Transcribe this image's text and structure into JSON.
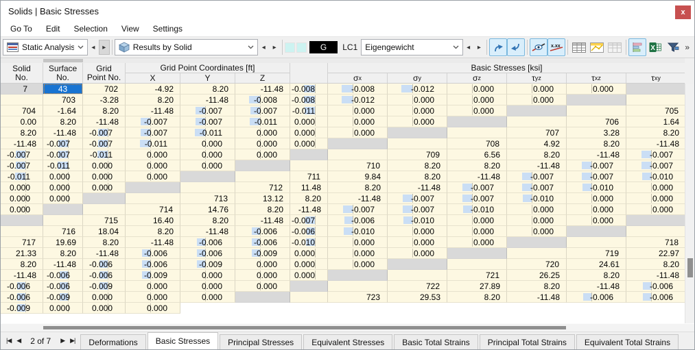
{
  "window": {
    "title": "Solids | Basic Stresses",
    "close_label": "x"
  },
  "menu": {
    "items": [
      "Go To",
      "Edit",
      "Selection",
      "View",
      "Settings"
    ]
  },
  "toolbar": {
    "analysis_combo": "Static Analysis",
    "results_combo": "Results by Solid",
    "loadcase_badge": "G",
    "loadcase_id": "LC1",
    "loadcase_combo": "Eigengewicht",
    "overflow_label": "»",
    "icon_buttons": [
      {
        "name": "jump-previous-icon",
        "highlighted": true
      },
      {
        "name": "jump-next-icon",
        "highlighted": true
      },
      {
        "name": "show-values-icon",
        "highlighted": true
      },
      {
        "name": "decimal-places-icon",
        "highlighted": true
      },
      {
        "name": "table-grid-icon",
        "highlighted": false
      },
      {
        "name": "table-results-icon",
        "highlighted": false
      },
      {
        "name": "table-inactive-icon",
        "highlighted": false
      },
      {
        "name": "result-diagram-icon",
        "highlighted": true
      },
      {
        "name": "export-excel-icon",
        "highlighted": false
      },
      {
        "name": "filter-icon",
        "highlighted": false
      }
    ]
  },
  "colors": {
    "selection": "#1874d2",
    "cell_background": "#fdf8e2",
    "value_bar": "#cadef5"
  },
  "table": {
    "col_headers": {
      "solid": "Solid\nNo.",
      "surface": "Surface\nNo.",
      "grid": "Grid\nPoint No.",
      "coords_group": "Grid Point Coordinates [ft]",
      "coord_axes": [
        "X",
        "Y",
        "Z"
      ],
      "stress_group": "Basic Stresses [ksi]",
      "stress_cols": [
        {
          "sym": "σ",
          "sub": "x"
        },
        {
          "sym": "σ",
          "sub": "y"
        },
        {
          "sym": "σ",
          "sub": "z"
        },
        {
          "sym": "τ",
          "sub": "yz"
        },
        {
          "sym": "τ",
          "sub": "xz"
        },
        {
          "sym": "τ",
          "sub": "xy"
        }
      ]
    },
    "selection": {
      "row": 0,
      "col": 1
    },
    "rows": [
      [
        "7",
        "43",
        "702",
        "-4.92",
        "8.20",
        "-11.48",
        "-0.008",
        "-0.008",
        "-0.012",
        "0.000",
        "0.000",
        "0.000"
      ],
      [
        "",
        "",
        "703",
        "-3.28",
        "8.20",
        "-11.48",
        "-0.008",
        "-0.008",
        "-0.012",
        "0.000",
        "0.000",
        "0.000"
      ],
      [
        "",
        "",
        "704",
        "-1.64",
        "8.20",
        "-11.48",
        "-0.007",
        "-0.007",
        "-0.011",
        "0.000",
        "0.000",
        "0.000"
      ],
      [
        "",
        "",
        "705",
        "0.00",
        "8.20",
        "-11.48",
        "-0.007",
        "-0.007",
        "-0.011",
        "0.000",
        "0.000",
        "0.000"
      ],
      [
        "",
        "",
        "706",
        "1.64",
        "8.20",
        "-11.48",
        "-0.007",
        "-0.007",
        "-0.011",
        "0.000",
        "0.000",
        "0.000"
      ],
      [
        "",
        "",
        "707",
        "3.28",
        "8.20",
        "-11.48",
        "-0.007",
        "-0.007",
        "-0.011",
        "0.000",
        "0.000",
        "0.000"
      ],
      [
        "",
        "",
        "708",
        "4.92",
        "8.20",
        "-11.48",
        "-0.007",
        "-0.007",
        "-0.011",
        "0.000",
        "0.000",
        "0.000"
      ],
      [
        "",
        "",
        "709",
        "6.56",
        "8.20",
        "-11.48",
        "-0.007",
        "-0.007",
        "-0.011",
        "0.000",
        "0.000",
        "0.000"
      ],
      [
        "",
        "",
        "710",
        "8.20",
        "8.20",
        "-11.48",
        "-0.007",
        "-0.007",
        "-0.011",
        "0.000",
        "0.000",
        "0.000"
      ],
      [
        "",
        "",
        "711",
        "9.84",
        "8.20",
        "-11.48",
        "-0.007",
        "-0.007",
        "-0.010",
        "0.000",
        "0.000",
        "0.000"
      ],
      [
        "",
        "",
        "712",
        "11.48",
        "8.20",
        "-11.48",
        "-0.007",
        "-0.007",
        "-0.010",
        "0.000",
        "0.000",
        "0.000"
      ],
      [
        "",
        "",
        "713",
        "13.12",
        "8.20",
        "-11.48",
        "-0.007",
        "-0.007",
        "-0.010",
        "0.000",
        "0.000",
        "0.000"
      ],
      [
        "",
        "",
        "714",
        "14.76",
        "8.20",
        "-11.48",
        "-0.007",
        "-0.007",
        "-0.010",
        "0.000",
        "0.000",
        "0.000"
      ],
      [
        "",
        "",
        "715",
        "16.40",
        "8.20",
        "-11.48",
        "-0.007",
        "-0.006",
        "-0.010",
        "0.000",
        "0.000",
        "0.000"
      ],
      [
        "",
        "",
        "716",
        "18.04",
        "8.20",
        "-11.48",
        "-0.006",
        "-0.006",
        "-0.010",
        "0.000",
        "0.000",
        "0.000"
      ],
      [
        "",
        "",
        "717",
        "19.69",
        "8.20",
        "-11.48",
        "-0.006",
        "-0.006",
        "-0.010",
        "0.000",
        "0.000",
        "0.000"
      ],
      [
        "",
        "",
        "718",
        "21.33",
        "8.20",
        "-11.48",
        "-0.006",
        "-0.006",
        "-0.009",
        "0.000",
        "0.000",
        "0.000"
      ],
      [
        "",
        "",
        "719",
        "22.97",
        "8.20",
        "-11.48",
        "-0.006",
        "-0.006",
        "-0.009",
        "0.000",
        "0.000",
        "0.000"
      ],
      [
        "",
        "",
        "720",
        "24.61",
        "8.20",
        "-11.48",
        "-0.006",
        "-0.006",
        "-0.009",
        "0.000",
        "0.000",
        "0.000"
      ],
      [
        "",
        "",
        "721",
        "26.25",
        "8.20",
        "-11.48",
        "-0.006",
        "-0.006",
        "-0.009",
        "0.000",
        "0.000",
        "0.000"
      ],
      [
        "",
        "",
        "722",
        "27.89",
        "8.20",
        "-11.48",
        "-0.006",
        "-0.006",
        "-0.009",
        "0.000",
        "0.000",
        "0.000"
      ],
      [
        "",
        "",
        "723",
        "29.53",
        "8.20",
        "-11.48",
        "-0.006",
        "-0.006",
        "-0.009",
        "0.000",
        "0.000",
        "0.000"
      ]
    ]
  },
  "statusbar": {
    "pager": "2 of 7",
    "nav": {
      "first": "|◀",
      "prev": "◀",
      "next": "▶",
      "last": "▶|"
    },
    "active_tab_index": 1,
    "tabs": [
      "Deformations",
      "Basic Stresses",
      "Principal Stresses",
      "Equivalent Stresses",
      "Basic Total Strains",
      "Principal Total Strains",
      "Equivalent Total Strains"
    ]
  }
}
